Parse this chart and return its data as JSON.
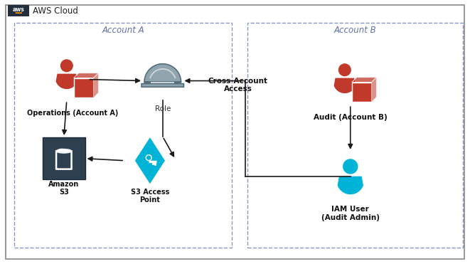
{
  "figsize": [
    6.61,
    3.71
  ],
  "dpi": 100,
  "bg_color": "#ffffff",
  "aws_cloud_label": "AWS Cloud",
  "account_a_label": "Account A",
  "account_b_label": "Account B",
  "ops_label": "Operations (Account A)",
  "audit_label": "Audit (Account B)",
  "s3_label": "Amazon\nS3",
  "access_point_label": "S3 Access\nPoint",
  "role_label": "Role",
  "iam_label": "IAM User\n(Audit Admin)",
  "cross_account_label": "Cross-Account\nAccess",
  "red_color": "#c0392b",
  "blue_color": "#00b4d8",
  "helmet_color": "#546e7a",
  "helmet_light": "#90a4ae",
  "dark_bg": "#2e3f4f",
  "diamond_color": "#00b4d8",
  "arrow_color": "#1a1a1a",
  "account_label_color": "#6272a4",
  "outer_border_color": "#888888",
  "dashed_color": "#8896c8",
  "aws_logo_bg": "#232f3e"
}
